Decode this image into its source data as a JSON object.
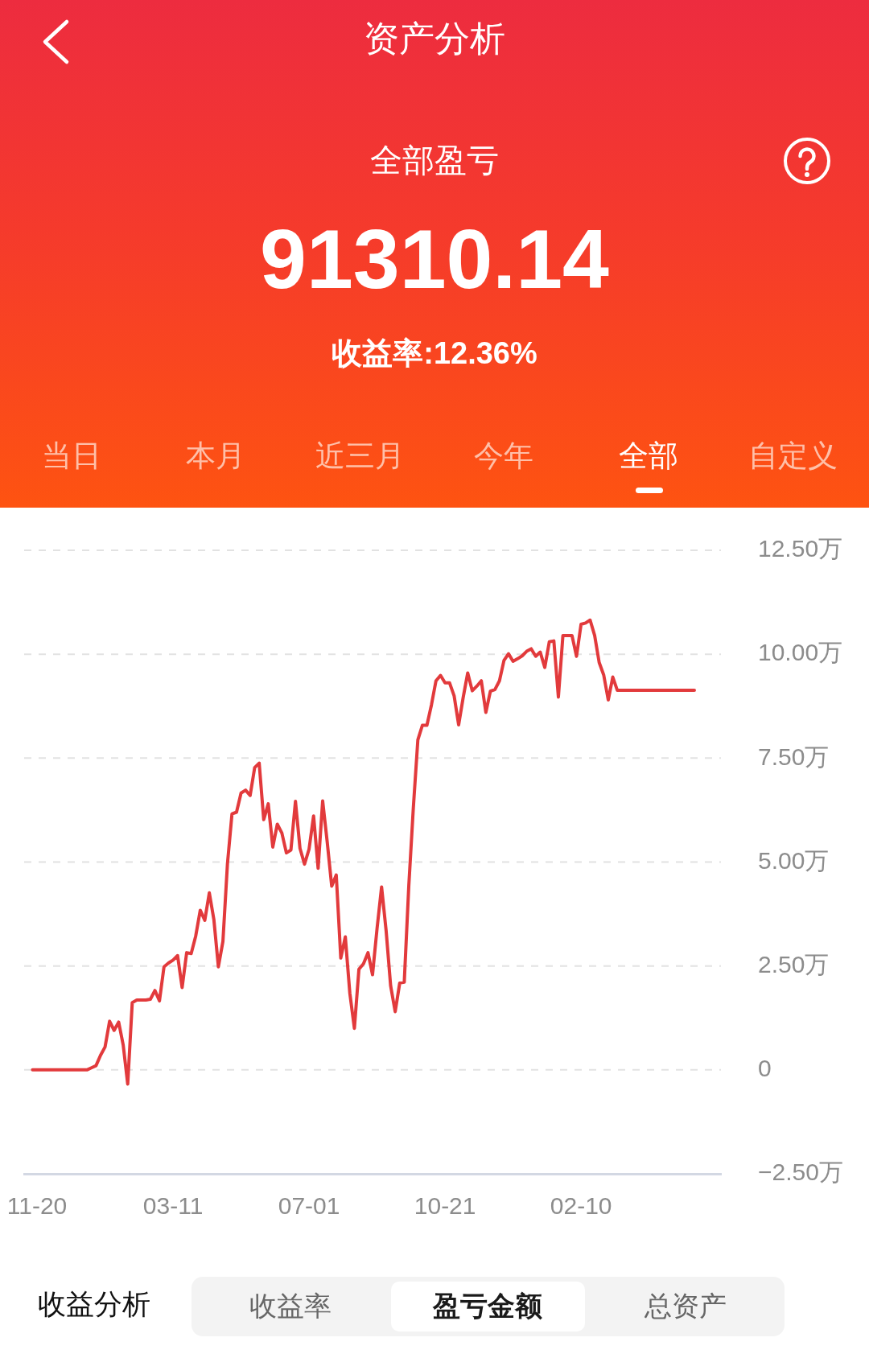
{
  "chart_data": {
    "type": "line",
    "title": "资产分析",
    "subtitle": "全部盈亏",
    "annotations": [
      "91310.14",
      "收益率:12.36%",
      "当日",
      "本月",
      "近三月",
      "今年",
      "全部",
      "自定义",
      "收益分析",
      "收益率",
      "盈亏金额",
      "总资产"
    ],
    "categories": [
      null,
      "11-20",
      null,
      null,
      null,
      null,
      null,
      null,
      null,
      null,
      null,
      null,
      null,
      null,
      null,
      null,
      null,
      null,
      null,
      null,
      null,
      null,
      null,
      null,
      null,
      null,
      null,
      null,
      null,
      null,
      null,
      "03-11",
      null,
      null,
      null,
      null,
      null,
      null,
      null,
      null,
      null,
      null,
      null,
      null,
      null,
      null,
      null,
      null,
      null,
      null,
      null,
      null,
      null,
      null,
      null,
      null,
      null,
      null,
      null,
      null,
      null,
      "07-01",
      null,
      null,
      null,
      null,
      null,
      null,
      null,
      null,
      null,
      null,
      null,
      null,
      null,
      null,
      null,
      null,
      null,
      null,
      null,
      null,
      null,
      null,
      null,
      null,
      null,
      null,
      null,
      null,
      null,
      "10-21",
      null,
      null,
      null,
      null,
      null,
      null,
      null,
      null,
      null,
      null,
      null,
      null,
      null,
      null,
      null,
      null,
      null,
      null,
      null,
      null,
      null,
      null,
      null,
      null,
      null,
      null,
      null,
      null,
      null,
      "02-10",
      null,
      null,
      null,
      null,
      null,
      null,
      null,
      null,
      null,
      null,
      null,
      null,
      null,
      null,
      null,
      null,
      null,
      null,
      null,
      null,
      null,
      null,
      null,
      null,
      null
    ],
    "values": [
      0,
      0,
      0,
      0,
      0,
      0,
      0,
      0,
      0,
      0,
      0,
      0,
      0,
      0.05,
      0.1,
      0.35,
      0.55,
      1.17,
      0.95,
      1.15,
      0.6,
      -0.34,
      1.62,
      1.68,
      1.68,
      1.68,
      1.7,
      1.91,
      1.66,
      2.48,
      2.57,
      2.64,
      2.75,
      1.98,
      2.82,
      2.8,
      3.22,
      3.84,
      3.6,
      4.26,
      3.62,
      2.48,
      3.09,
      4.96,
      6.16,
      6.2,
      6.66,
      6.73,
      6.6,
      7.27,
      7.38,
      6.02,
      6.4,
      5.36,
      5.91,
      5.7,
      5.22,
      5.29,
      6.46,
      5.33,
      4.95,
      5.31,
      6.11,
      4.85,
      6.47,
      5.49,
      4.42,
      4.69,
      2.69,
      3.2,
      1.84,
      1.0,
      2.42,
      2.55,
      2.82,
      2.29,
      3.4,
      4.4,
      3.35,
      2.02,
      1.4,
      2.09,
      2.11,
      4.42,
      6.3,
      7.94,
      8.29,
      8.29,
      8.78,
      9.36,
      9.49,
      9.31,
      9.31,
      9.0,
      8.3,
      8.96,
      9.55,
      9.12,
      9.23,
      9.36,
      8.6,
      9.11,
      9.15,
      9.36,
      9.85,
      10.01,
      9.83,
      9.89,
      9.96,
      10.07,
      10.13,
      9.95,
      10.05,
      9.68,
      10.3,
      10.32,
      8.97,
      10.45,
      10.45,
      10.45,
      9.95,
      10.72,
      10.75,
      10.82,
      10.45,
      9.8,
      9.5,
      8.9,
      9.45,
      9.13,
      9.13,
      9.13,
      9.13,
      9.13,
      9.13,
      9.13,
      9.13,
      9.13,
      9.13,
      9.13,
      9.13,
      9.13,
      9.13,
      9.13,
      9.13,
      9.13,
      9.13
    ],
    "color": "#e23a3c",
    "ylim": [
      -2.5,
      12.5
    ],
    "yticks": [
      {
        "value": -2.5,
        "label": "−2.50万"
      },
      0,
      {
        "value": 2.5,
        "label": "2.50万"
      },
      {
        "value": 5,
        "label": "5.00万"
      },
      {
        "value": 7.5,
        "label": "7.50万"
      },
      {
        "value": 10,
        "label": "10.00万"
      },
      {
        "value": 12.5,
        "label": "12.50万"
      }
    ],
    "grid": "y",
    "marker": "none",
    "line_style": "solid"
  }
}
